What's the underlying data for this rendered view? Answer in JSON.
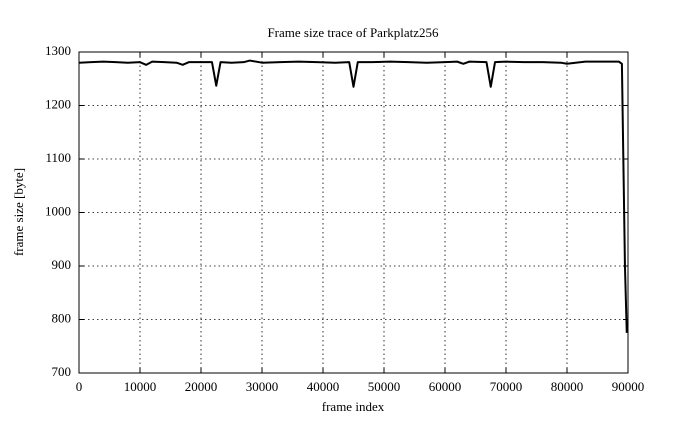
{
  "chart_data": {
    "type": "line",
    "title": "Frame size trace of Parkplatz256",
    "xlabel": "frame index",
    "ylabel": "frame size [byte]",
    "x": [
      0,
      2000,
      4000,
      6000,
      8000,
      10000,
      11000,
      12000,
      14000,
      16000,
      17000,
      18000,
      20000,
      21800,
      22500,
      23200,
      25000,
      27000,
      28000,
      30000,
      33000,
      36000,
      39000,
      42000,
      44300,
      45000,
      45700,
      48000,
      51000,
      54000,
      57000,
      60000,
      62000,
      63000,
      64000,
      66800,
      67500,
      68200,
      70000,
      73000,
      76000,
      79000,
      80000,
      83000,
      86000,
      88500,
      89000,
      89500,
      89800
    ],
    "series": [
      {
        "name": "Parkplatz256",
        "color": "#000000",
        "values": [
          1280,
          1281,
          1282,
          1281,
          1280,
          1281,
          1276,
          1282,
          1281,
          1280,
          1276,
          1281,
          1281,
          1281,
          1237,
          1281,
          1280,
          1281,
          1284,
          1280,
          1281,
          1282,
          1281,
          1280,
          1281,
          1235,
          1281,
          1281,
          1282,
          1281,
          1280,
          1281,
          1282,
          1278,
          1282,
          1281,
          1235,
          1281,
          1282,
          1281,
          1281,
          1280,
          1278,
          1282,
          1282,
          1282,
          1278,
          900,
          775
        ]
      }
    ],
    "xlim": [
      0,
      90000
    ],
    "ylim": [
      700,
      1300
    ],
    "xticks": [
      0,
      10000,
      20000,
      30000,
      40000,
      50000,
      60000,
      70000,
      80000,
      90000
    ],
    "yticks": [
      700,
      800,
      900,
      1000,
      1100,
      1200,
      1300
    ],
    "grid": true
  }
}
